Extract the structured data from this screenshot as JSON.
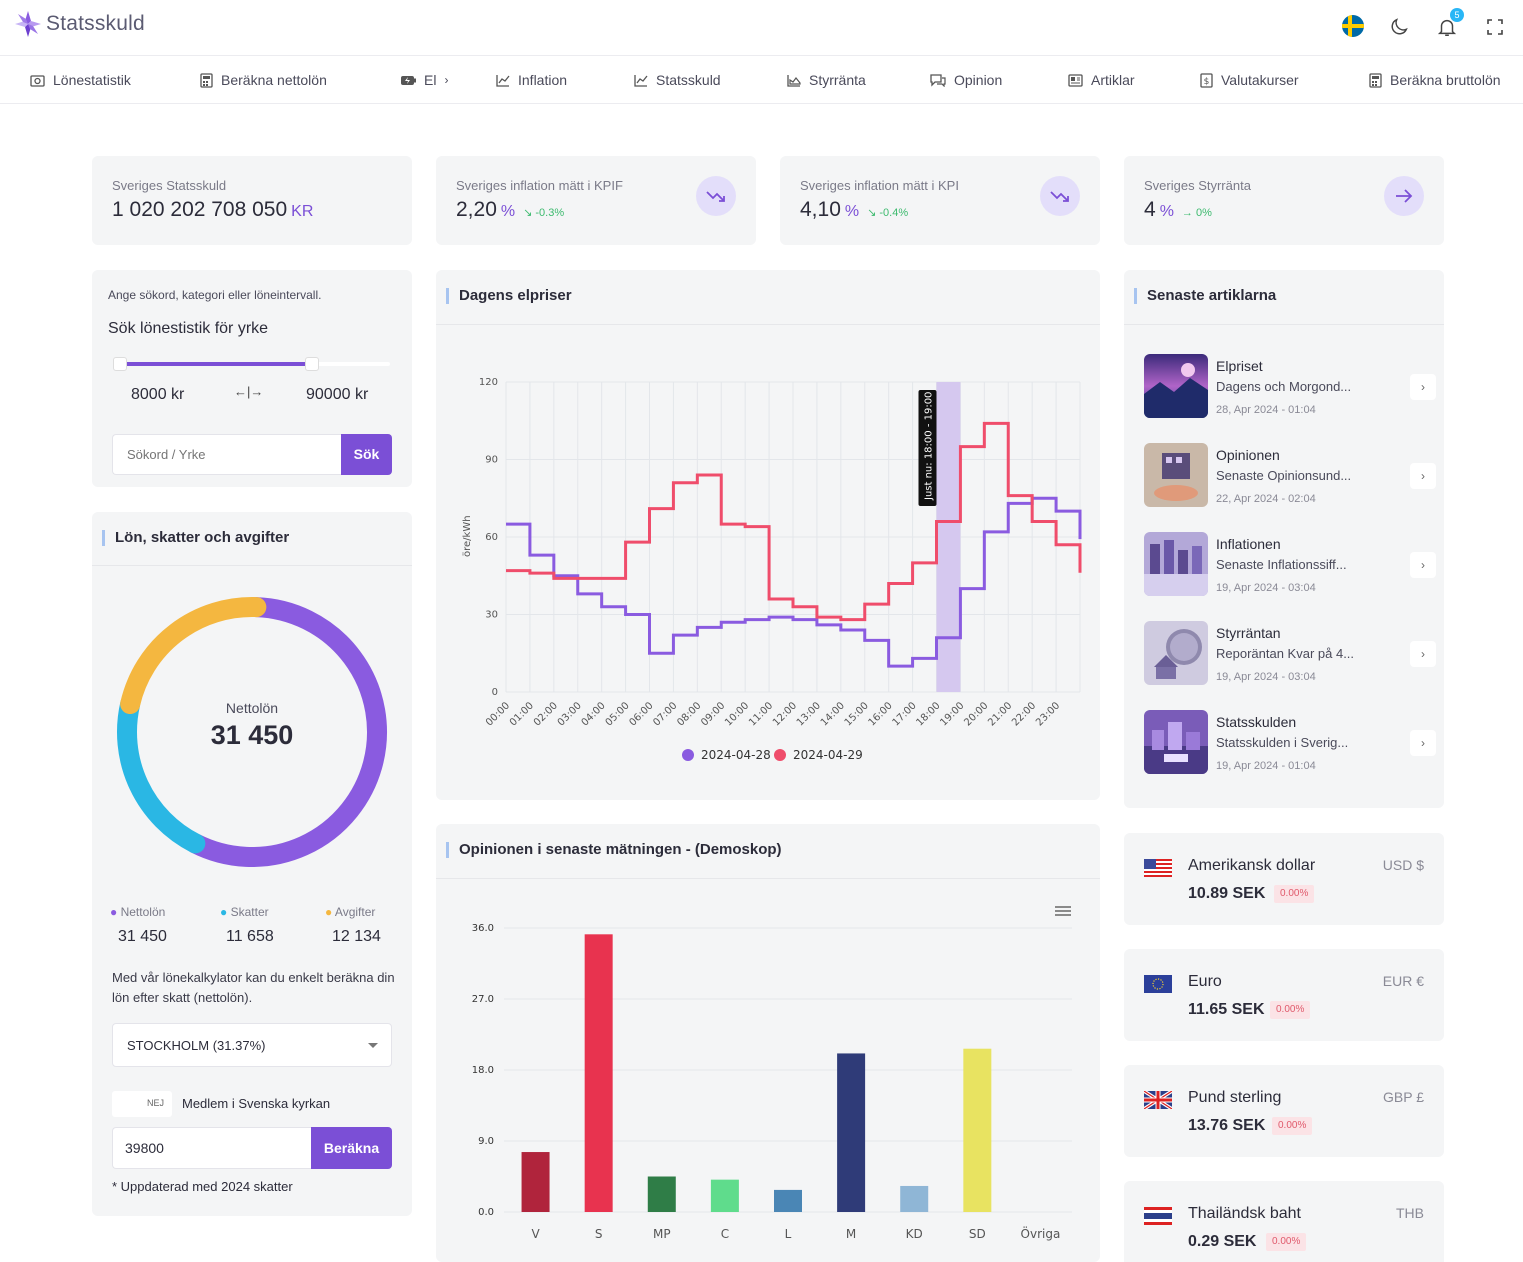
{
  "app": {
    "title": "Statsskuld",
    "notification_count": "5"
  },
  "nav": [
    {
      "label": "Lönestatistik",
      "icon": "camera-icon"
    },
    {
      "label": "Beräkna nettolön",
      "icon": "calculator-icon"
    },
    {
      "label": "El",
      "icon": "battery-icon"
    },
    {
      "label": "Inflation",
      "icon": "chart-line-icon"
    },
    {
      "label": "Statsskuld",
      "icon": "chart-line-icon"
    },
    {
      "label": "Styrränta",
      "icon": "chart-area-icon"
    },
    {
      "label": "Opinion",
      "icon": "chat-icon"
    },
    {
      "label": "Artiklar",
      "icon": "newspaper-icon"
    },
    {
      "label": "Valutakurser",
      "icon": "currency-icon"
    },
    {
      "label": "Beräkna bruttolön",
      "icon": "calculator-icon"
    }
  ],
  "stats": [
    {
      "label": "Sveriges Statsskuld",
      "value": "1 020 202 708 050",
      "unit": "KR"
    },
    {
      "label": "Sveriges inflation mätt i KPIF",
      "value": "2,20",
      "unit": "%",
      "change": "-0.3%",
      "icon": "trending-down-icon"
    },
    {
      "label": "Sveriges inflation mätt i KPI",
      "value": "4,10",
      "unit": "%",
      "change": "-0.4%",
      "icon": "trending-down-icon"
    },
    {
      "label": "Sveriges Styrränta",
      "value": "4",
      "unit": "%",
      "change": "0%",
      "icon": "arrow-right-icon"
    }
  ],
  "salary_search": {
    "hint": "Ange sökord, kategori eller löneintervall.",
    "title": "Sök lönestistik för yrke",
    "min": "8000 kr",
    "max": "90000 kr",
    "range_low_fraction": 0.0,
    "range_high_fraction": 0.71,
    "placeholder": "Sökord / Yrke",
    "button": "Sök"
  },
  "salary_calc": {
    "title": "Lön, skatter och avgifter",
    "center_label": "Nettolön",
    "center_value": "31 450",
    "legend": [
      {
        "label": "Nettolön",
        "value": "31 450",
        "color": "#8a5be0"
      },
      {
        "label": "Skatter",
        "value": "11 658",
        "color": "#2ab7e4"
      },
      {
        "label": "Avgifter",
        "value": "12 134",
        "color": "#f4b740"
      }
    ],
    "description": "Med vår lönekalkylator kan du enkelt beräkna din lön efter skatt (nettolön).",
    "municipality": "STOCKHOLM (31.37%)",
    "church_toggle": "NEJ",
    "church_label": "Medlem i Svenska kyrkan",
    "salary_input": "39800",
    "button": "Beräkna",
    "footnote": "* Uppdaterad med 2024 skatter"
  },
  "elpriser": {
    "title": "Dagens elpriser",
    "now_label": "Just nu: 18:00 - 19:00"
  },
  "opinion": {
    "title": "Opinionen i senaste mätningen - (Demoskop)"
  },
  "chart_data": [
    {
      "type": "line",
      "title": "Dagens elpriser",
      "ylabel": "öre/kWh",
      "ylim": [
        0,
        120
      ],
      "yticks": [
        0,
        30,
        60,
        90,
        120
      ],
      "x": [
        "00:00",
        "01:00",
        "02:00",
        "03:00",
        "04:00",
        "05:00",
        "06:00",
        "07:00",
        "08:00",
        "09:00",
        "10:00",
        "11:00",
        "12:00",
        "13:00",
        "14:00",
        "15:00",
        "16:00",
        "17:00",
        "18:00",
        "19:00",
        "20:00",
        "21:00",
        "22:00",
        "23:00"
      ],
      "highlight": "18:00",
      "series": [
        {
          "name": "2024-04-28",
          "color": "#8a5be0",
          "values": [
            65,
            53,
            45,
            38,
            33,
            30,
            15,
            22,
            25,
            27,
            28,
            29,
            28,
            26,
            24,
            20,
            10,
            13,
            21,
            40,
            62,
            73,
            75,
            70
          ]
        },
        {
          "name": "2024-04-29",
          "color": "#ef4d6b",
          "values": [
            47,
            46,
            44,
            44,
            44,
            58,
            71,
            81,
            84,
            65,
            64,
            36,
            33,
            29,
            28,
            34,
            42,
            50,
            66,
            95,
            104,
            76,
            66,
            57
          ]
        }
      ]
    },
    {
      "type": "bar",
      "title": "Opinionen i senaste mätningen - (Demoskop)",
      "ylim": [
        0,
        36
      ],
      "yticks": [
        "0.0",
        "9.0",
        "18.0",
        "27.0",
        "36.0"
      ],
      "categories": [
        "V",
        "S",
        "MP",
        "C",
        "L",
        "M",
        "KD",
        "SD",
        "Övriga"
      ],
      "values": [
        7.6,
        35.2,
        4.5,
        4.1,
        2.8,
        20.1,
        3.3,
        20.7,
        0
      ],
      "colors": [
        "#b0243c",
        "#e8334f",
        "#2f7d47",
        "#5fdc8c",
        "#4a86b5",
        "#2f3b78",
        "#8fb6d6",
        "#e8e361",
        "#aaaaaa"
      ]
    }
  ],
  "articles": {
    "title": "Senaste artiklarna",
    "items": [
      {
        "title": "Elpriset",
        "subtitle": "Dagens och Morgond...",
        "date": "28, Apr 2024 - 01:04"
      },
      {
        "title": "Opinionen",
        "subtitle": "Senaste Opinionsund...",
        "date": "22, Apr 2024 - 02:04"
      },
      {
        "title": "Inflationen",
        "subtitle": "Senaste Inflationssiff...",
        "date": "19, Apr 2024 - 03:04"
      },
      {
        "title": "Styrräntan",
        "subtitle": "Reporäntan Kvar på 4...",
        "date": "19, Apr 2024 - 03:04"
      },
      {
        "title": "Statsskulden",
        "subtitle": "Statsskulden i Sverig...",
        "date": "19, Apr 2024 - 01:04"
      }
    ]
  },
  "currencies": [
    {
      "name": "Amerikansk dollar",
      "code": "USD $",
      "value": "10.89 SEK",
      "change": "0.00%",
      "flag": "us-flag-icon"
    },
    {
      "name": "Euro",
      "code": "EUR €",
      "value": "11.65 SEK",
      "change": "0.00%",
      "flag": "eu-flag-icon"
    },
    {
      "name": "Pund sterling",
      "code": "GBP £",
      "value": "13.76 SEK",
      "change": "0.00%",
      "flag": "uk-flag-icon"
    },
    {
      "name": "Thailändsk baht",
      "code": "THB",
      "value": "0.29 SEK",
      "change": "0.00%",
      "flag": "th-flag-icon"
    }
  ]
}
